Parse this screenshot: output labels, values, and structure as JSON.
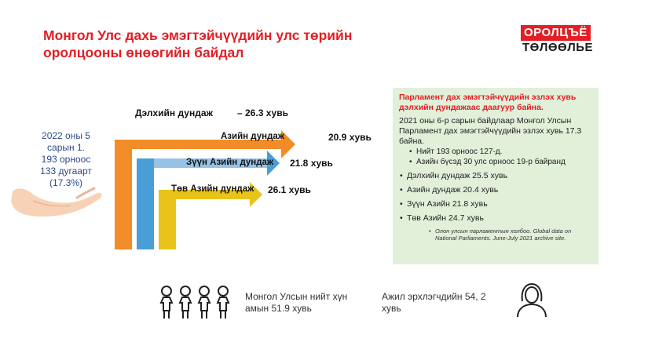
{
  "header": {
    "title_line1": "Монгол Улс дахь эмэгтэйчүүдийн улс төрийн",
    "title_line2": "оролцооны өнөөгийн байдал",
    "logo_top": "ОРОЛЦЪЁ",
    "logo_bottom": "ТӨЛӨӨЛЬЕ",
    "brand_red": "#e31e24"
  },
  "mongolia_stat": {
    "line1": "2022 оны 5",
    "line2": "сарын 1.",
    "line3": "193 орноос",
    "line4": "133 дугаарт",
    "line5": "(17.3%)"
  },
  "chart": {
    "world_label": "Дэлхийн дундаж",
    "world_value": "– 26.3 хувь",
    "bars": [
      {
        "label": "Азийн дундаж",
        "value": "20.9 хувь",
        "color": "#f28c28"
      },
      {
        "label": "Зүүн Азийн дундаж",
        "value": "21.8 хувь",
        "color": "#3a96d4"
      },
      {
        "label": "Төв Азийн дундаж",
        "value": "26.1 хувь",
        "color": "#e8c31a"
      }
    ]
  },
  "panel": {
    "heading": "Парламент дах эмэгтэйчүүдийн эзлэх хувь дэлхийн дундажаас даагуур байна.",
    "intro": "2021 оны 6-р сарын байдлаар Монгол Улсын Парламент дах эмэгтэйчүүдийн эзлэх хувь 17.3 байна.",
    "sub_items": [
      "Нийт 193 орноос 127-д.",
      "Азийн бүсэд 30 улс орноос 19-р байранд"
    ],
    "items": [
      "Дэлхийн дундаж 25.5 хувь",
      "Азийн дундаж  20.4 хувь",
      "Зүүн Азийн 21.8 хувь",
      "Төв Азийн 24.7 хувь"
    ],
    "source": "Олон улсын парламентын холбоо. Global data on National Parliaments. June-July 2021 archive site.",
    "background": "#e2efd9"
  },
  "footer": {
    "population_text": "Монгол Улсын нийт хүн амын 51.9 хувь",
    "workforce_text": "Ажил эрхлэгчдийн 54, 2 хувь"
  }
}
